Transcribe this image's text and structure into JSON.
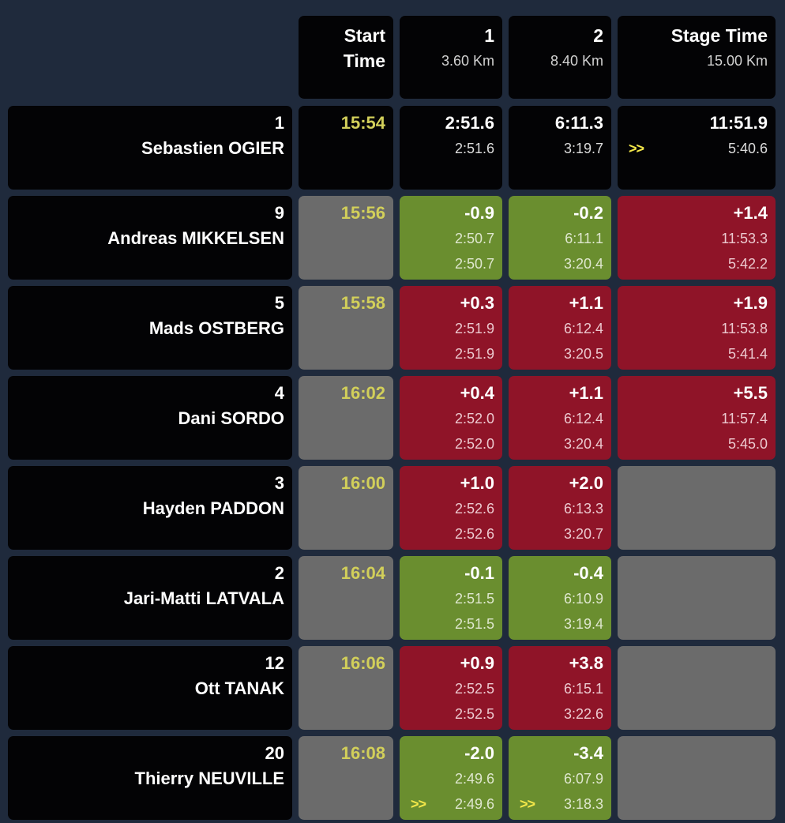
{
  "header": {
    "start": {
      "line1": "Start",
      "line2": "Time"
    },
    "splits": [
      {
        "label": "1",
        "distance": "3.60 Km"
      },
      {
        "label": "2",
        "distance": "8.40 Km"
      }
    ],
    "stage": {
      "label": "Stage Time",
      "distance": "15.00 Km"
    }
  },
  "fastest_marker": ">>",
  "rows": [
    {
      "number": "1",
      "name": "Sebastien OGIER",
      "start_time": "15:54",
      "splits": [
        {
          "status": "leader",
          "main": "2:51.6",
          "sub1": "2:51.6",
          "sub2": "",
          "fastest": false
        },
        {
          "status": "leader",
          "main": "6:11.3",
          "sub1": "3:19.7",
          "sub2": "",
          "fastest": false
        }
      ],
      "stage": {
        "status": "leader",
        "main": "11:51.9",
        "sub1": "5:40.6",
        "sub2": "",
        "fastest": true
      }
    },
    {
      "number": "9",
      "name": "Andreas MIKKELSEN",
      "start_time": "15:56",
      "splits": [
        {
          "status": "faster",
          "main": "-0.9",
          "sub1": "2:50.7",
          "sub2": "2:50.7",
          "fastest": false
        },
        {
          "status": "faster",
          "main": "-0.2",
          "sub1": "6:11.1",
          "sub2": "3:20.4",
          "fastest": false
        }
      ],
      "stage": {
        "status": "slower",
        "main": "+1.4",
        "sub1": "11:53.3",
        "sub2": "5:42.2",
        "fastest": false
      }
    },
    {
      "number": "5",
      "name": "Mads OSTBERG",
      "start_time": "15:58",
      "splits": [
        {
          "status": "slower",
          "main": "+0.3",
          "sub1": "2:51.9",
          "sub2": "2:51.9",
          "fastest": false
        },
        {
          "status": "slower",
          "main": "+1.1",
          "sub1": "6:12.4",
          "sub2": "3:20.5",
          "fastest": false
        }
      ],
      "stage": {
        "status": "slower",
        "main": "+1.9",
        "sub1": "11:53.8",
        "sub2": "5:41.4",
        "fastest": false
      }
    },
    {
      "number": "4",
      "name": "Dani SORDO",
      "start_time": "16:02",
      "splits": [
        {
          "status": "slower",
          "main": "+0.4",
          "sub1": "2:52.0",
          "sub2": "2:52.0",
          "fastest": false
        },
        {
          "status": "slower",
          "main": "+1.1",
          "sub1": "6:12.4",
          "sub2": "3:20.4",
          "fastest": false
        }
      ],
      "stage": {
        "status": "slower",
        "main": "+5.5",
        "sub1": "11:57.4",
        "sub2": "5:45.0",
        "fastest": false
      }
    },
    {
      "number": "3",
      "name": "Hayden PADDON",
      "start_time": "16:00",
      "splits": [
        {
          "status": "slower",
          "main": "+1.0",
          "sub1": "2:52.6",
          "sub2": "2:52.6",
          "fastest": false
        },
        {
          "status": "slower",
          "main": "+2.0",
          "sub1": "6:13.3",
          "sub2": "3:20.7",
          "fastest": false
        }
      ],
      "stage": {
        "status": "pending",
        "main": "",
        "sub1": "",
        "sub2": "",
        "fastest": false
      }
    },
    {
      "number": "2",
      "name": "Jari-Matti LATVALA",
      "start_time": "16:04",
      "splits": [
        {
          "status": "faster",
          "main": "-0.1",
          "sub1": "2:51.5",
          "sub2": "2:51.5",
          "fastest": false
        },
        {
          "status": "faster",
          "main": "-0.4",
          "sub1": "6:10.9",
          "sub2": "3:19.4",
          "fastest": false
        }
      ],
      "stage": {
        "status": "pending",
        "main": "",
        "sub1": "",
        "sub2": "",
        "fastest": false
      }
    },
    {
      "number": "12",
      "name": "Ott TANAK",
      "start_time": "16:06",
      "splits": [
        {
          "status": "slower",
          "main": "+0.9",
          "sub1": "2:52.5",
          "sub2": "2:52.5",
          "fastest": false
        },
        {
          "status": "slower",
          "main": "+3.8",
          "sub1": "6:15.1",
          "sub2": "3:22.6",
          "fastest": false
        }
      ],
      "stage": {
        "status": "pending",
        "main": "",
        "sub1": "",
        "sub2": "",
        "fastest": false
      }
    },
    {
      "number": "20",
      "name": "Thierry NEUVILLE",
      "start_time": "16:08",
      "splits": [
        {
          "status": "faster",
          "main": "-2.0",
          "sub1": "2:49.6",
          "sub2": "2:49.6",
          "fastest": true
        },
        {
          "status": "faster",
          "main": "-3.4",
          "sub1": "6:07.9",
          "sub2": "3:18.3",
          "fastest": true
        }
      ],
      "stage": {
        "status": "pending",
        "main": "",
        "sub1": "",
        "sub2": "",
        "fastest": false
      }
    }
  ],
  "colors": {
    "background": "#1f2a3c",
    "cell_black": "#030305",
    "cell_gray": "#6b6b6b",
    "faster": "#6a8e2f",
    "slower": "#8f1428",
    "start_time_text": "#d2cf5a",
    "fastest_marker": "#f4e84a"
  }
}
